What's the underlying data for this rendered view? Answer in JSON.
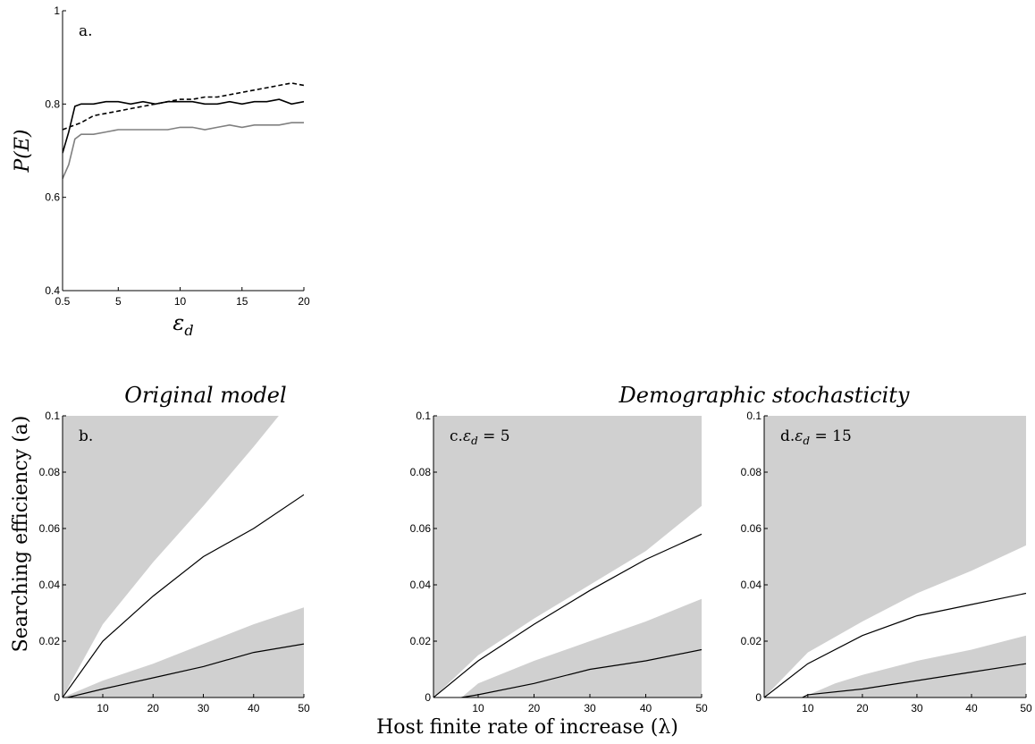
{
  "figure": {
    "title_original": "Original model",
    "title_demographic": "Demographic stochasticity",
    "ylabel_bottom": "Searching efficiency (a)",
    "xlabel_bottom": "Host finite rate of increase (λ)"
  },
  "chart_data": [
    {
      "id": "a",
      "type": "line",
      "panel_label": "a.",
      "xlabel": "ε_d",
      "ylabel": "P(E)",
      "xlim": [
        0.5,
        20
      ],
      "ylim": [
        0.4,
        1
      ],
      "xticks": [
        "0.5",
        "5",
        "10",
        "15",
        "20"
      ],
      "yticks": [
        "0.4",
        "0.6",
        "0.8",
        "1"
      ],
      "series": [
        {
          "style": "solid-black",
          "x": [
            0.5,
            1,
            1.5,
            2,
            3,
            4,
            5,
            6,
            7,
            8,
            9,
            10,
            11,
            12,
            13,
            14,
            15,
            16,
            17,
            18,
            19,
            20
          ],
          "y": [
            0.695,
            0.74,
            0.795,
            0.8,
            0.8,
            0.805,
            0.805,
            0.8,
            0.805,
            0.8,
            0.805,
            0.805,
            0.805,
            0.8,
            0.8,
            0.805,
            0.8,
            0.805,
            0.805,
            0.81,
            0.8,
            0.805
          ]
        },
        {
          "style": "dashed-black",
          "x": [
            0.5,
            1,
            2,
            3,
            4,
            5,
            6,
            7,
            8,
            9,
            10,
            11,
            12,
            13,
            14,
            15,
            16,
            17,
            18,
            19,
            20
          ],
          "y": [
            0.745,
            0.75,
            0.76,
            0.775,
            0.78,
            0.785,
            0.79,
            0.795,
            0.8,
            0.805,
            0.81,
            0.81,
            0.815,
            0.815,
            0.82,
            0.825,
            0.83,
            0.835,
            0.84,
            0.845,
            0.84
          ]
        },
        {
          "style": "solid-gray",
          "x": [
            0.5,
            1,
            1.5,
            2,
            3,
            4,
            5,
            6,
            7,
            8,
            9,
            10,
            11,
            12,
            13,
            14,
            15,
            16,
            17,
            18,
            19,
            20
          ],
          "y": [
            0.64,
            0.67,
            0.725,
            0.735,
            0.735,
            0.74,
            0.745,
            0.745,
            0.745,
            0.745,
            0.745,
            0.75,
            0.75,
            0.745,
            0.75,
            0.755,
            0.75,
            0.755,
            0.755,
            0.755,
            0.76,
            0.76
          ]
        }
      ]
    },
    {
      "id": "b",
      "type": "area",
      "panel_label": "b.",
      "xlim": [
        2,
        50
      ],
      "ylim": [
        0,
        0.1
      ],
      "xticks": [
        "10",
        "20",
        "30",
        "40",
        "50"
      ],
      "yticks": [
        "0",
        "0.02",
        "0.04",
        "0.06",
        "0.08",
        "0.1"
      ],
      "upper_boundary": {
        "x": [
          2,
          10,
          20,
          30,
          40,
          45
        ],
        "y": [
          0,
          0.026,
          0.048,
          0.068,
          0.089,
          0.1
        ]
      },
      "lower_boundary": {
        "x": [
          2,
          10,
          20,
          30,
          40,
          50
        ],
        "y": [
          0,
          0.006,
          0.012,
          0.019,
          0.026,
          0.032
        ]
      },
      "series": [
        {
          "style": "solid-black",
          "x": [
            2,
            10,
            20,
            30,
            40,
            50
          ],
          "y": [
            0,
            0.02,
            0.036,
            0.05,
            0.06,
            0.072
          ]
        },
        {
          "style": "solid-black",
          "x": [
            3,
            10,
            20,
            30,
            40,
            50
          ],
          "y": [
            0,
            0.003,
            0.007,
            0.011,
            0.016,
            0.019
          ]
        }
      ]
    },
    {
      "id": "c",
      "type": "area",
      "panel_label": "c.",
      "panel_param": "5",
      "xlim": [
        2,
        50
      ],
      "ylim": [
        0,
        0.1
      ],
      "xticks": [
        "10",
        "20",
        "30",
        "40",
        "50"
      ],
      "yticks": [
        "0",
        "0.02",
        "0.04",
        "0.06",
        "0.08",
        "0.1"
      ],
      "upper_boundary": {
        "x": [
          2,
          10,
          20,
          30,
          40,
          50
        ],
        "y": [
          0,
          0.015,
          0.028,
          0.04,
          0.052,
          0.068
        ]
      },
      "lower_boundary": {
        "x": [
          7,
          10,
          20,
          30,
          40,
          50
        ],
        "y": [
          0,
          0.005,
          0.013,
          0.02,
          0.027,
          0.035
        ]
      },
      "series": [
        {
          "style": "solid-black",
          "x": [
            2,
            10,
            20,
            30,
            40,
            50
          ],
          "y": [
            0,
            0.013,
            0.026,
            0.038,
            0.049,
            0.058
          ]
        },
        {
          "style": "solid-black",
          "x": [
            7,
            10,
            20,
            30,
            40,
            50
          ],
          "y": [
            0,
            0.001,
            0.005,
            0.01,
            0.013,
            0.017
          ]
        }
      ]
    },
    {
      "id": "d",
      "type": "area",
      "panel_label": "d.",
      "panel_param": "15",
      "xlim": [
        2,
        50
      ],
      "ylim": [
        0,
        0.1
      ],
      "xticks": [
        "10",
        "20",
        "30",
        "40",
        "50"
      ],
      "yticks": [
        "0",
        "0.02",
        "0.04",
        "0.06",
        "0.08",
        "0.1"
      ],
      "upper_boundary": {
        "x": [
          2,
          10,
          20,
          30,
          40,
          50
        ],
        "y": [
          0,
          0.016,
          0.027,
          0.037,
          0.045,
          0.054
        ]
      },
      "lower_boundary": {
        "x": [
          9,
          15,
          20,
          30,
          40,
          50
        ],
        "y": [
          0,
          0.005,
          0.008,
          0.013,
          0.017,
          0.022
        ]
      },
      "series": [
        {
          "style": "solid-black",
          "x": [
            2,
            10,
            20,
            30,
            40,
            50
          ],
          "y": [
            0,
            0.012,
            0.022,
            0.029,
            0.033,
            0.037
          ]
        },
        {
          "style": "solid-black",
          "x": [
            9,
            10,
            20,
            30,
            40,
            50
          ],
          "y": [
            0,
            0.001,
            0.003,
            0.006,
            0.009,
            0.012
          ]
        }
      ]
    }
  ]
}
